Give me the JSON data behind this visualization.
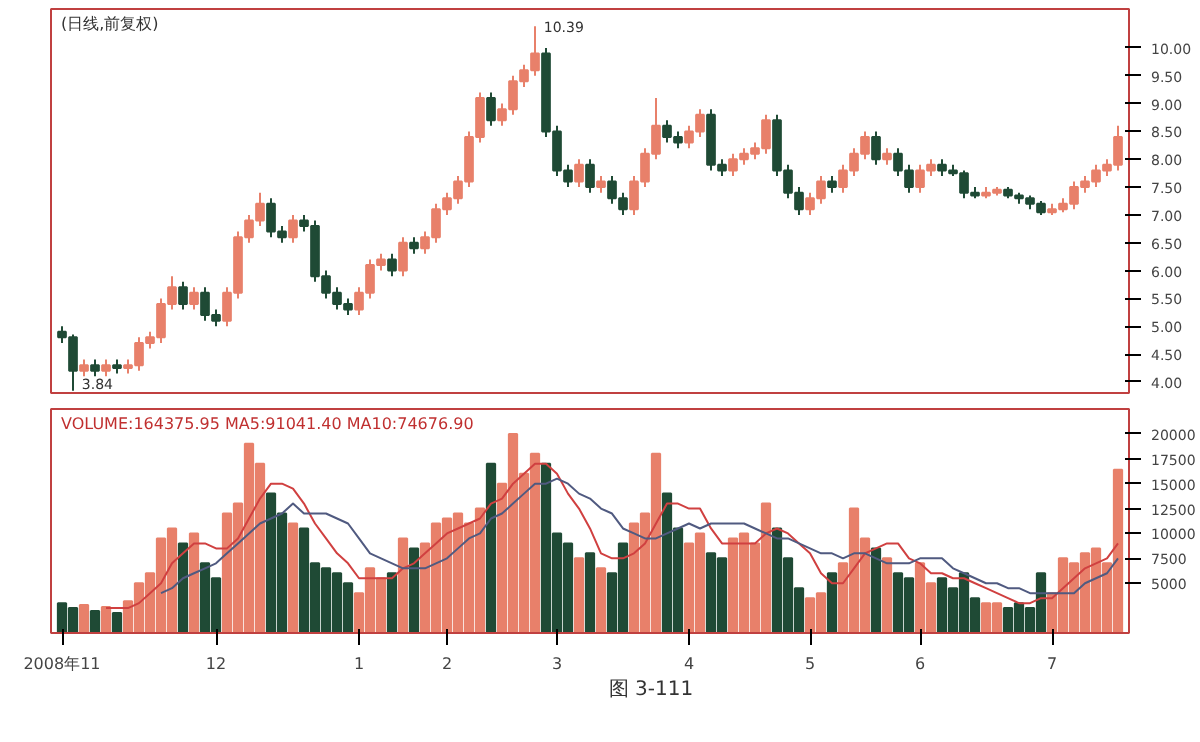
{
  "chart_data": [
    {
      "type": "candlestick",
      "title": "(日线,前复权)",
      "ohlc": [
        [
          4.9,
          5.0,
          4.7,
          4.8
        ],
        [
          4.8,
          4.85,
          3.84,
          4.2
        ],
        [
          4.2,
          4.4,
          4.1,
          4.3
        ],
        [
          4.3,
          4.4,
          4.1,
          4.2
        ],
        [
          4.2,
          4.4,
          4.1,
          4.3
        ],
        [
          4.3,
          4.4,
          4.15,
          4.25
        ],
        [
          4.25,
          4.4,
          4.15,
          4.3
        ],
        [
          4.3,
          4.8,
          4.2,
          4.7
        ],
        [
          4.7,
          4.9,
          4.6,
          4.8
        ],
        [
          4.8,
          5.5,
          4.7,
          5.4
        ],
        [
          5.4,
          5.9,
          5.3,
          5.7
        ],
        [
          5.7,
          5.8,
          5.3,
          5.4
        ],
        [
          5.4,
          5.7,
          5.3,
          5.6
        ],
        [
          5.6,
          5.7,
          5.1,
          5.2
        ],
        [
          5.2,
          5.3,
          5.0,
          5.1
        ],
        [
          5.1,
          5.7,
          5.0,
          5.6
        ],
        [
          5.6,
          6.7,
          5.5,
          6.6
        ],
        [
          6.6,
          7.0,
          6.5,
          6.9
        ],
        [
          6.9,
          7.4,
          6.8,
          7.2
        ],
        [
          7.2,
          7.3,
          6.6,
          6.7
        ],
        [
          6.7,
          6.8,
          6.5,
          6.6
        ],
        [
          6.6,
          7.0,
          6.5,
          6.9
        ],
        [
          6.9,
          7.0,
          6.7,
          6.8
        ],
        [
          6.8,
          6.9,
          5.8,
          5.9
        ],
        [
          5.9,
          6.0,
          5.5,
          5.6
        ],
        [
          5.6,
          5.7,
          5.3,
          5.4
        ],
        [
          5.4,
          5.5,
          5.2,
          5.3
        ],
        [
          5.3,
          5.7,
          5.2,
          5.6
        ],
        [
          5.6,
          6.2,
          5.5,
          6.1
        ],
        [
          6.1,
          6.3,
          6.0,
          6.2
        ],
        [
          6.2,
          6.3,
          5.9,
          6.0
        ],
        [
          6.0,
          6.6,
          5.9,
          6.5
        ],
        [
          6.5,
          6.6,
          6.3,
          6.4
        ],
        [
          6.4,
          6.7,
          6.3,
          6.6
        ],
        [
          6.6,
          7.2,
          6.5,
          7.1
        ],
        [
          7.1,
          7.4,
          7.0,
          7.3
        ],
        [
          7.3,
          7.7,
          7.2,
          7.6
        ],
        [
          7.6,
          8.5,
          7.5,
          8.4
        ],
        [
          8.4,
          9.2,
          8.3,
          9.1
        ],
        [
          9.1,
          9.2,
          8.6,
          8.7
        ],
        [
          8.7,
          9.0,
          8.6,
          8.9
        ],
        [
          8.9,
          9.5,
          8.8,
          9.4
        ],
        [
          9.4,
          9.7,
          9.3,
          9.6
        ],
        [
          9.6,
          10.39,
          9.5,
          9.9
        ],
        [
          9.9,
          10.0,
          8.4,
          8.5
        ],
        [
          8.5,
          8.6,
          7.7,
          7.8
        ],
        [
          7.8,
          7.9,
          7.5,
          7.6
        ],
        [
          7.6,
          8.0,
          7.5,
          7.9
        ],
        [
          7.9,
          8.0,
          7.4,
          7.5
        ],
        [
          7.5,
          7.7,
          7.4,
          7.6
        ],
        [
          7.6,
          7.7,
          7.2,
          7.3
        ],
        [
          7.3,
          7.4,
          7.0,
          7.1
        ],
        [
          7.1,
          7.7,
          7.0,
          7.6
        ],
        [
          7.6,
          8.2,
          7.5,
          8.1
        ],
        [
          8.1,
          9.1,
          8.0,
          8.6
        ],
        [
          8.6,
          8.7,
          8.3,
          8.4
        ],
        [
          8.4,
          8.5,
          8.2,
          8.3
        ],
        [
          8.3,
          8.6,
          8.2,
          8.5
        ],
        [
          8.5,
          8.9,
          8.4,
          8.8
        ],
        [
          8.8,
          8.9,
          7.8,
          7.9
        ],
        [
          7.9,
          8.0,
          7.7,
          7.8
        ],
        [
          7.8,
          8.1,
          7.7,
          8.0
        ],
        [
          8.0,
          8.2,
          7.9,
          8.1
        ],
        [
          8.1,
          8.3,
          8.0,
          8.2
        ],
        [
          8.2,
          8.8,
          8.1,
          8.7
        ],
        [
          8.7,
          8.8,
          7.7,
          7.8
        ],
        [
          7.8,
          7.9,
          7.3,
          7.4
        ],
        [
          7.4,
          7.5,
          7.0,
          7.1
        ],
        [
          7.1,
          7.4,
          7.0,
          7.3
        ],
        [
          7.3,
          7.7,
          7.2,
          7.6
        ],
        [
          7.6,
          7.7,
          7.4,
          7.5
        ],
        [
          7.5,
          7.9,
          7.4,
          7.8
        ],
        [
          7.8,
          8.2,
          7.7,
          8.1
        ],
        [
          8.1,
          8.5,
          8.0,
          8.4
        ],
        [
          8.4,
          8.5,
          7.9,
          8.0
        ],
        [
          8.0,
          8.2,
          7.9,
          8.1
        ],
        [
          8.1,
          8.2,
          7.7,
          7.8
        ],
        [
          7.8,
          7.9,
          7.4,
          7.5
        ],
        [
          7.5,
          7.9,
          7.4,
          7.8
        ],
        [
          7.8,
          8.0,
          7.7,
          7.9
        ],
        [
          7.9,
          8.0,
          7.7,
          7.8
        ],
        [
          7.8,
          7.9,
          7.7,
          7.75
        ],
        [
          7.75,
          7.8,
          7.3,
          7.4
        ],
        [
          7.4,
          7.5,
          7.3,
          7.35
        ],
        [
          7.35,
          7.5,
          7.3,
          7.4
        ],
        [
          7.4,
          7.5,
          7.35,
          7.45
        ],
        [
          7.45,
          7.5,
          7.3,
          7.35
        ],
        [
          7.35,
          7.4,
          7.2,
          7.3
        ],
        [
          7.3,
          7.35,
          7.1,
          7.2
        ],
        [
          7.2,
          7.25,
          7.0,
          7.05
        ],
        [
          7.05,
          7.2,
          7.0,
          7.1
        ],
        [
          7.1,
          7.3,
          7.05,
          7.2
        ],
        [
          7.2,
          7.6,
          7.1,
          7.5
        ],
        [
          7.5,
          7.7,
          7.4,
          7.6
        ],
        [
          7.6,
          7.9,
          7.5,
          7.8
        ],
        [
          7.8,
          8.0,
          7.7,
          7.9
        ],
        [
          7.9,
          8.6,
          7.8,
          8.4
        ]
      ],
      "colors": [
        "#1f4a35",
        "#1f4a35",
        "#e8806a",
        "#1f4a35",
        "#e8806a",
        "#1f4a35",
        "#e8806a",
        "#e8806a",
        "#e8806a",
        "#e8806a",
        "#e8806a",
        "#1f4a35",
        "#e8806a",
        "#1f4a35",
        "#1f4a35",
        "#e8806a",
        "#e8806a",
        "#e8806a",
        "#e8806a",
        "#1f4a35",
        "#1f4a35",
        "#e8806a",
        "#1f4a35",
        "#1f4a35",
        "#1f4a35",
        "#1f4a35",
        "#1f4a35",
        "#e8806a",
        "#e8806a",
        "#e8806a",
        "#1f4a35",
        "#e8806a",
        "#1f4a35",
        "#e8806a",
        "#e8806a",
        "#e8806a",
        "#e8806a",
        "#e8806a",
        "#e8806a",
        "#1f4a35",
        "#e8806a",
        "#e8806a",
        "#e8806a",
        "#e8806a",
        "#1f4a35",
        "#1f4a35",
        "#1f4a35",
        "#e8806a",
        "#1f4a35",
        "#e8806a",
        "#1f4a35",
        "#1f4a35",
        "#e8806a",
        "#e8806a",
        "#e8806a",
        "#1f4a35",
        "#1f4a35",
        "#e8806a",
        "#e8806a",
        "#1f4a35",
        "#1f4a35",
        "#e8806a",
        "#e8806a",
        "#e8806a",
        "#e8806a",
        "#1f4a35",
        "#1f4a35",
        "#1f4a35",
        "#e8806a",
        "#e8806a",
        "#1f4a35",
        "#e8806a",
        "#e8806a",
        "#e8806a",
        "#1f4a35",
        "#e8806a",
        "#1f4a35",
        "#1f4a35",
        "#e8806a",
        "#e8806a",
        "#1f4a35",
        "#1f4a35",
        "#1f4a35",
        "#1f4a35",
        "#e8806a",
        "#e8806a",
        "#1f4a35",
        "#1f4a35",
        "#1f4a35",
        "#1f4a35",
        "#e8806a",
        "#e8806a",
        "#e8806a",
        "#e8806a",
        "#e8806a",
        "#e8806a",
        "#e8806a"
      ],
      "ylim": [
        3.8,
        10.7
      ],
      "yticks": [
        {
          "value": 4,
          "label": "4.00"
        },
        {
          "value": 4.5,
          "label": "4.50"
        },
        {
          "value": 5,
          "label": "5.00"
        },
        {
          "value": 5.5,
          "label": "5.50"
        },
        {
          "value": 6,
          "label": "6.00"
        },
        {
          "value": 6.5,
          "label": "6.50"
        },
        {
          "value": 7,
          "label": "7.00"
        },
        {
          "value": 7.5,
          "label": "7.50"
        },
        {
          "value": 8,
          "label": "8.00"
        },
        {
          "value": 8.5,
          "label": "8.50"
        },
        {
          "value": 9,
          "label": "9.00"
        },
        {
          "value": 9.5,
          "label": "9.50"
        },
        {
          "value": 10,
          "label": "10.00"
        }
      ],
      "tick_labels": "y",
      "annotations": [
        "10.39",
        "3.84"
      ]
    },
    {
      "type": "bar",
      "categories": [
        "2008年11",
        null,
        null,
        null,
        null,
        null,
        null,
        null,
        null,
        null,
        null,
        null,
        null,
        null,
        "12",
        null,
        null,
        null,
        null,
        null,
        null,
        null,
        null,
        null,
        null,
        null,
        null,
        "1",
        null,
        null,
        null,
        null,
        null,
        null,
        null,
        "2",
        null,
        null,
        null,
        null,
        null,
        null,
        null,
        null,
        null,
        "3",
        null,
        null,
        null,
        null,
        null,
        null,
        null,
        null,
        null,
        null,
        null,
        "4",
        null,
        null,
        null,
        null,
        null,
        null,
        null,
        null,
        null,
        null,
        "5",
        null,
        null,
        null,
        null,
        null,
        null,
        null,
        null,
        null,
        "6",
        null,
        null,
        null,
        null,
        null,
        null,
        null,
        null,
        null,
        null,
        null,
        "7",
        null,
        null,
        null,
        null,
        null,
        null
      ],
      "series": [
        {
          "type": "bar",
          "colors": [
            "#1f4a35",
            "#1f4a35",
            "#e8806a",
            "#1f4a35",
            "#e8806a",
            "#1f4a35",
            "#e8806a",
            "#e8806a",
            "#e8806a",
            "#e8806a",
            "#e8806a",
            "#1f4a35",
            "#e8806a",
            "#1f4a35",
            "#1f4a35",
            "#e8806a",
            "#e8806a",
            "#e8806a",
            "#e8806a",
            "#1f4a35",
            "#1f4a35",
            "#e8806a",
            "#1f4a35",
            "#1f4a35",
            "#1f4a35",
            "#1f4a35",
            "#1f4a35",
            "#e8806a",
            "#e8806a",
            "#e8806a",
            "#1f4a35",
            "#e8806a",
            "#1f4a35",
            "#e8806a",
            "#e8806a",
            "#e8806a",
            "#e8806a",
            "#e8806a",
            "#e8806a",
            "#1f4a35",
            "#e8806a",
            "#e8806a",
            "#e8806a",
            "#e8806a",
            "#1f4a35",
            "#1f4a35",
            "#1f4a35",
            "#e8806a",
            "#1f4a35",
            "#e8806a",
            "#1f4a35",
            "#1f4a35",
            "#e8806a",
            "#e8806a",
            "#e8806a",
            "#1f4a35",
            "#1f4a35",
            "#e8806a",
            "#e8806a",
            "#1f4a35",
            "#1f4a35",
            "#e8806a",
            "#e8806a",
            "#e8806a",
            "#e8806a",
            "#1f4a35",
            "#1f4a35",
            "#1f4a35",
            "#e8806a",
            "#e8806a",
            "#1f4a35",
            "#e8806a",
            "#e8806a",
            "#e8806a",
            "#1f4a35",
            "#e8806a",
            "#1f4a35",
            "#1f4a35",
            "#e8806a",
            "#e8806a",
            "#1f4a35",
            "#1f4a35",
            "#1f4a35",
            "#1f4a35",
            "#e8806a",
            "#e8806a",
            "#1f4a35",
            "#1f4a35",
            "#1f4a35",
            "#1f4a35",
            "#e8806a",
            "#e8806a",
            "#e8806a",
            "#e8806a",
            "#e8806a",
            "#e8806a",
            "#e8806a"
          ],
          "values": [
            3000,
            2500,
            2800,
            2200,
            2600,
            2000,
            3200,
            5000,
            6000,
            9500,
            10500,
            9000,
            10000,
            7000,
            5500,
            12000,
            13000,
            19000,
            17000,
            14000,
            12000,
            11000,
            10500,
            7000,
            6500,
            6000,
            5000,
            4000,
            6500,
            5500,
            6000,
            9500,
            8500,
            9000,
            11000,
            11500,
            12000,
            11000,
            12500,
            17000,
            15000,
            20000,
            16000,
            18000,
            17000,
            10000,
            9000,
            7500,
            8000,
            6500,
            6000,
            9000,
            11000,
            12000,
            18000,
            14000,
            10500,
            9000,
            10000,
            8000,
            7500,
            9500,
            10000,
            9000,
            13000,
            10500,
            7500,
            4500,
            3500,
            4000,
            6000,
            7000,
            12500,
            9500,
            8500,
            7500,
            6000,
            5500,
            7000,
            5000,
            5500,
            4500,
            6000,
            3500,
            3000,
            3000,
            2500,
            3000,
            2500,
            6000,
            4000,
            7500,
            7000,
            8000,
            8500,
            7000,
            16400
          ]
        },
        {
          "type": "line",
          "color": "#d04040",
          "values": [
            null,
            null,
            null,
            null,
            2500,
            2500,
            2500,
            3000,
            4000,
            5000,
            7000,
            8000,
            9000,
            9000,
            8500,
            8500,
            9500,
            11500,
            13500,
            15000,
            15000,
            14500,
            13000,
            11000,
            9500,
            8000,
            7000,
            5500,
            5500,
            5500,
            5500,
            6500,
            7000,
            8000,
            9000,
            10000,
            10500,
            11000,
            11500,
            13000,
            13500,
            15000,
            16000,
            17000,
            17000,
            16000,
            14000,
            12500,
            10500,
            8000,
            7500,
            7500,
            8000,
            9000,
            11000,
            13000,
            13000,
            12500,
            12500,
            10500,
            9000,
            9000,
            9000,
            9000,
            10000,
            10500,
            10000,
            9000,
            8000,
            6000,
            5000,
            5000,
            6500,
            8000,
            8500,
            9000,
            9000,
            7500,
            7000,
            6000,
            6000,
            5500,
            5500,
            5000,
            4500,
            4000,
            3500,
            3000,
            3000,
            3500,
            3500,
            4500,
            5500,
            6500,
            7000,
            7500,
            9000
          ]
        },
        {
          "type": "line",
          "color": "#505a80",
          "values": [
            null,
            null,
            null,
            null,
            null,
            null,
            null,
            null,
            null,
            4000,
            4500,
            5500,
            6000,
            6500,
            7000,
            8000,
            9000,
            10000,
            11000,
            11500,
            12000,
            13000,
            12000,
            12000,
            12000,
            11500,
            11000,
            9500,
            8000,
            7500,
            7000,
            6500,
            6500,
            6500,
            7000,
            7500,
            8500,
            9500,
            10000,
            11500,
            12000,
            13000,
            14000,
            15000,
            15000,
            15500,
            15000,
            14000,
            13500,
            12500,
            12000,
            10500,
            10000,
            9500,
            9500,
            10000,
            10500,
            11000,
            10500,
            11000,
            11000,
            11000,
            11000,
            10500,
            10000,
            9500,
            9500,
            9000,
            8500,
            8000,
            8000,
            7500,
            8000,
            8000,
            7500,
            7000,
            7000,
            7000,
            7500,
            7500,
            7500,
            6500,
            6000,
            5500,
            5000,
            5000,
            4500,
            4500,
            4000,
            4000,
            4000,
            4000,
            4000,
            5000,
            5500,
            6000,
            7500
          ]
        }
      ],
      "ylim": [
        0,
        22500
      ],
      "yticks": [
        5000,
        7500,
        10000,
        12500,
        15000,
        17500,
        20000
      ],
      "annotations": [
        "VOLUME:164375.95  MA5:91041.40  MA10:74676.90",
        "图 3-111"
      ]
    }
  ]
}
